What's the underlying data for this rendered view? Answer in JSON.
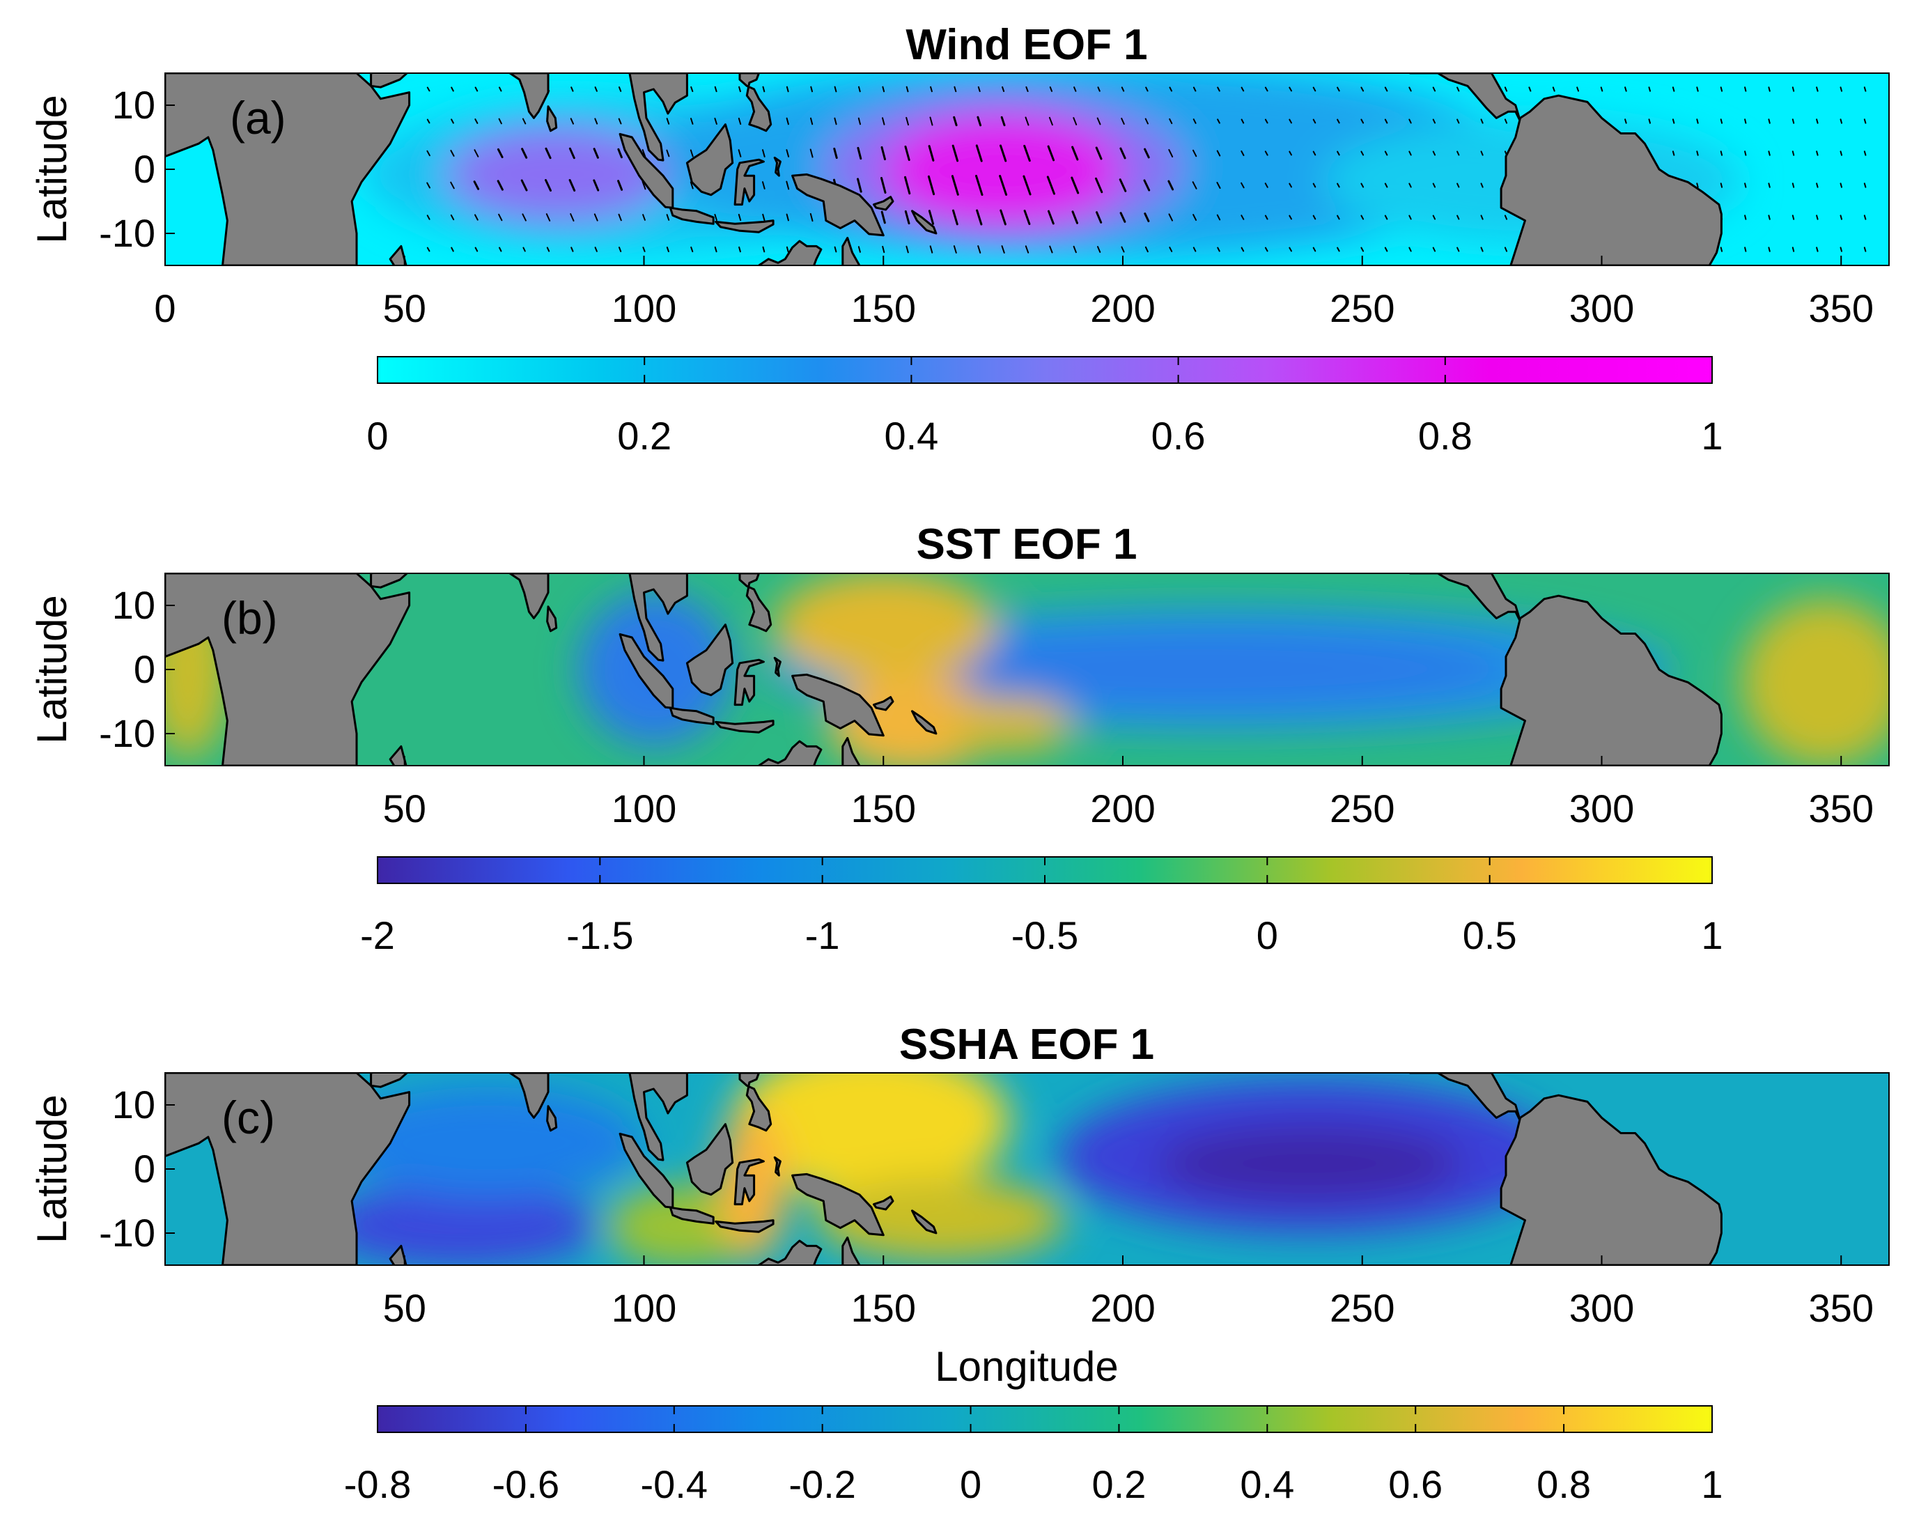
{
  "chart_data": [
    {
      "type": "heatmap",
      "panel_label": "(a)",
      "title": "Wind EOF 1",
      "ylabel": "Latitude",
      "xlabel": "",
      "xlim": [
        0,
        360
      ],
      "ylim": [
        -15,
        15
      ],
      "xticks": [
        0,
        50,
        100,
        150,
        200,
        250,
        300,
        350
      ],
      "yticks": [
        10,
        0,
        -10
      ],
      "colorbar": {
        "range": [
          0,
          1
        ],
        "ticks": [
          "0",
          "0.2",
          "0.4",
          "0.6",
          "0.8",
          "1"
        ],
        "colors": [
          "#00ffff",
          "#00c8f0",
          "#1f8ef0",
          "#7b78f4",
          "#b84ff8",
          "#f000f0",
          "#ff00ff"
        ]
      },
      "has_vectors": true,
      "features": [
        {
          "name": "western-pacific-maximum",
          "lon": 172,
          "lat": -2,
          "value": 0.95
        },
        {
          "name": "indian-ocean-maximum",
          "lon": 82,
          "lat": -1,
          "value": 0.45
        }
      ]
    },
    {
      "type": "heatmap",
      "panel_label": "(b)",
      "title": "SST EOF 1",
      "ylabel": "Latitude",
      "xlabel": "",
      "xlim": [
        0,
        360
      ],
      "ylim": [
        -15,
        15
      ],
      "xticks": [
        50,
        100,
        150,
        200,
        250,
        300,
        350
      ],
      "yticks": [
        10,
        0,
        -10
      ],
      "colorbar": {
        "range": [
          -2,
          1
        ],
        "ticks": [
          "-2",
          "-1.5",
          "-1",
          "-0.5",
          "0",
          "0.5",
          "1"
        ],
        "colors": [
          "#3e26a8",
          "#2f57f0",
          "#1189e8",
          "#10a8c8",
          "#1ec080",
          "#a6c428",
          "#fbb23a",
          "#f8fa12"
        ]
      },
      "features": [
        {
          "name": "western-pacific-warm",
          "lon": 158,
          "lat": -5,
          "value": 0.4
        },
        {
          "name": "central-pacific-cold-tongue",
          "lon": 230,
          "lat": 0,
          "value": -1.1
        },
        {
          "name": "java-sea-minimum",
          "lon": 110,
          "lat": -5,
          "value": -1.5
        }
      ]
    },
    {
      "type": "heatmap",
      "panel_label": "(c)",
      "title": "SSHA EOF 1",
      "ylabel": "Latitude",
      "xlabel": "Longitude",
      "xlim": [
        0,
        360
      ],
      "ylim": [
        -15,
        15
      ],
      "xticks": [
        50,
        100,
        150,
        200,
        250,
        300,
        350
      ],
      "yticks": [
        10,
        0,
        -10
      ],
      "colorbar": {
        "range": [
          -0.8,
          1
        ],
        "ticks": [
          "-0.8",
          "-0.6",
          "-0.4",
          "-0.2",
          "0",
          "0.2",
          "0.4",
          "0.6",
          "0.8",
          "1"
        ],
        "colors": [
          "#3e26a8",
          "#2f57f0",
          "#1189e8",
          "#10a8c8",
          "#1ec080",
          "#a6c428",
          "#fbb23a",
          "#f8fa12"
        ]
      },
      "features": [
        {
          "name": "western-pacific-maximum",
          "lon": 145,
          "lat": 8,
          "value": 0.9
        },
        {
          "name": "eastern-pacific-minimum",
          "lon": 235,
          "lat": 0,
          "value": -0.75
        },
        {
          "name": "indian-ocean-minimum",
          "lon": 62,
          "lat": -9,
          "value": -0.6
        }
      ]
    }
  ]
}
